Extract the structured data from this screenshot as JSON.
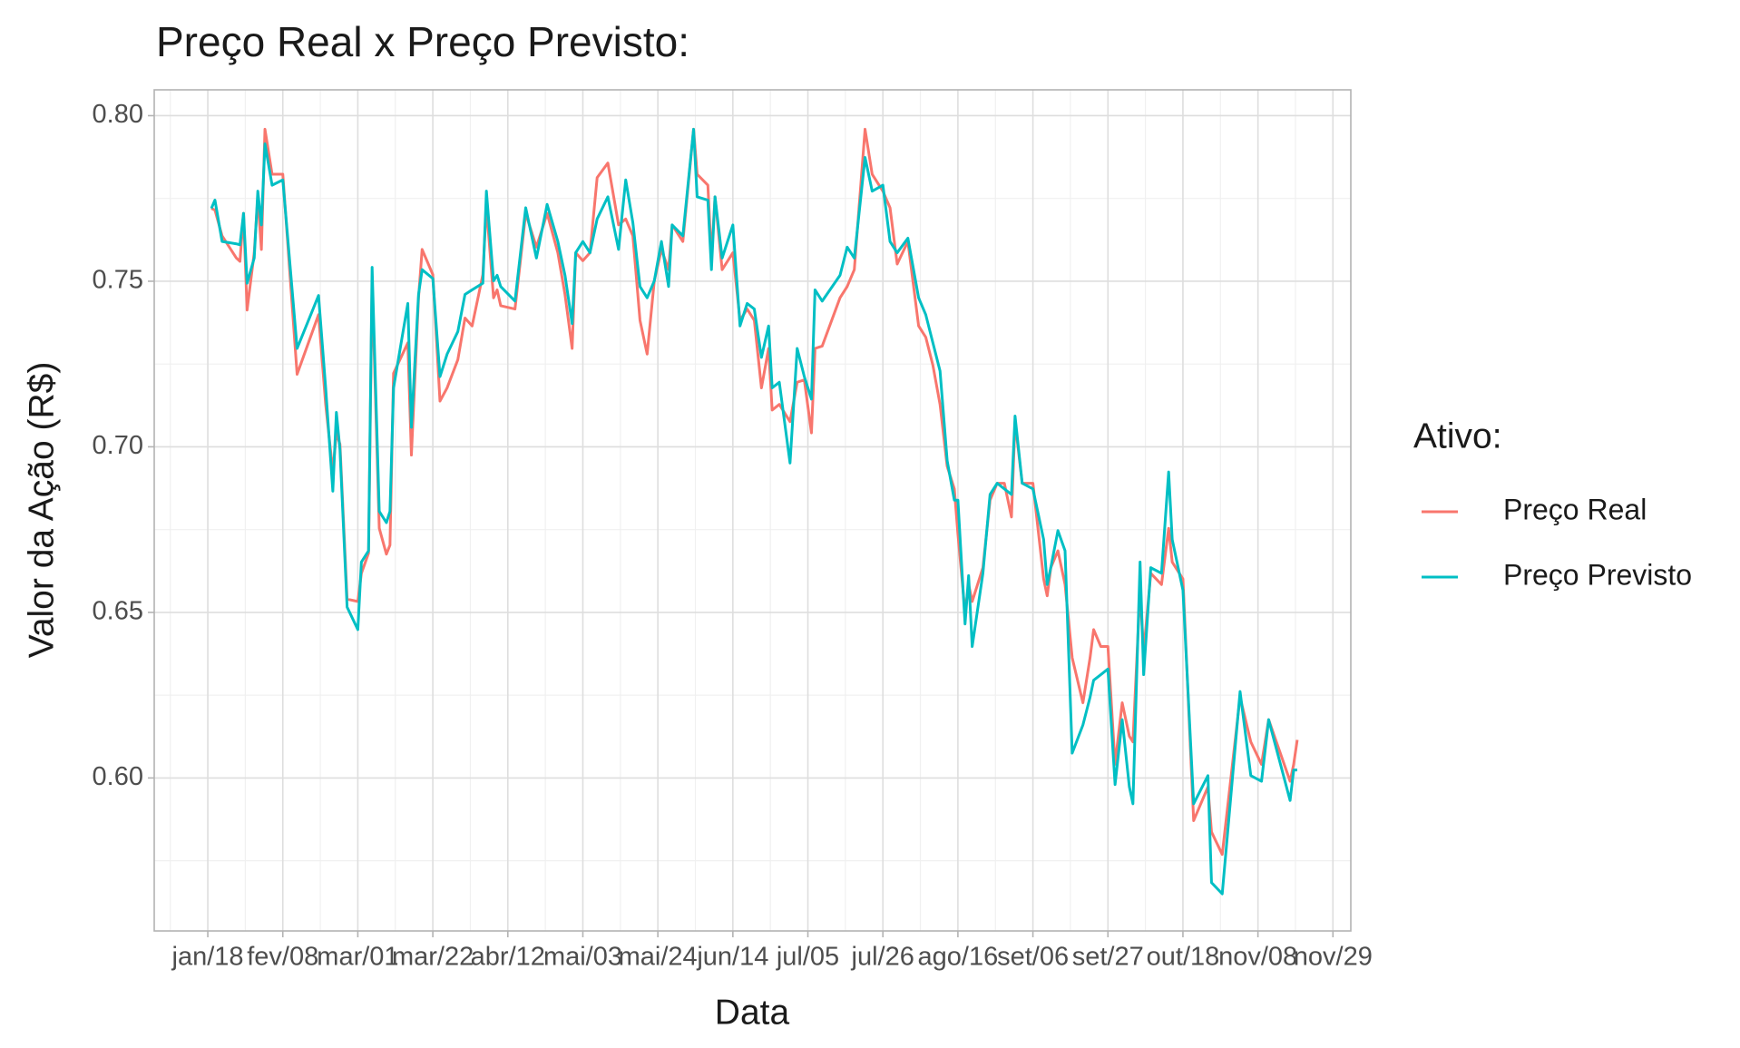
{
  "chart_data": {
    "type": "line",
    "title": "Preço Real x Preço Previsto:",
    "x_label": "Data",
    "y_label": "Valor da Ação (R$)",
    "legend_title": "Ativo:",
    "legend_position": "right",
    "grid": true,
    "minor_grid": true,
    "x": [
      "01-19",
      "01-20",
      "01-22",
      "01-26",
      "01-27",
      "01-28",
      "01-29",
      "01-31",
      "02-01",
      "02-02",
      "02-03",
      "02-05",
      "02-08",
      "02-12",
      "02-18",
      "02-20",
      "02-22",
      "02-23",
      "02-24",
      "02-26",
      "03-01",
      "03-02",
      "03-04",
      "03-05",
      "03-07",
      "03-09",
      "03-10",
      "03-11",
      "03-15",
      "03-16",
      "03-18",
      "03-19",
      "03-22",
      "03-24",
      "03-26",
      "03-29",
      "03-31",
      "04-02",
      "04-05",
      "04-06",
      "04-08",
      "04-09",
      "04-10",
      "04-14",
      "04-17",
      "04-20",
      "04-23",
      "04-26",
      "04-28",
      "04-30",
      "05-01",
      "05-03",
      "05-05",
      "05-07",
      "05-10",
      "05-13",
      "05-15",
      "05-17",
      "05-19",
      "05-21",
      "05-23",
      "05-25",
      "05-27",
      "05-28",
      "05-31",
      "06-03",
      "06-04",
      "06-07",
      "06-08",
      "06-09",
      "06-11",
      "06-14",
      "06-16",
      "06-18",
      "06-20",
      "06-22",
      "06-24",
      "06-25",
      "06-27",
      "06-30",
      "07-02",
      "07-04",
      "07-06",
      "07-07",
      "07-09",
      "07-14",
      "07-16",
      "07-18",
      "07-21",
      "07-23",
      "07-26",
      "07-28",
      "07-30",
      "08-02",
      "08-05",
      "08-07",
      "08-09",
      "08-11",
      "08-13",
      "08-15",
      "08-16",
      "08-18",
      "08-19",
      "08-20",
      "08-23",
      "08-25",
      "08-27",
      "08-29",
      "08-31",
      "09-01",
      "09-03",
      "09-06",
      "09-09",
      "09-10",
      "09-11",
      "09-13",
      "09-15",
      "09-17",
      "09-20",
      "09-22",
      "09-23",
      "09-25",
      "09-27",
      "09-29",
      "10-01",
      "10-03",
      "10-04",
      "10-06",
      "10-07",
      "10-09",
      "10-12",
      "10-14",
      "10-15",
      "10-18",
      "10-21",
      "10-25",
      "10-26",
      "10-29",
      "11-03",
      "11-06",
      "11-09",
      "11-11",
      "11-17",
      "11-18",
      "11-19"
    ],
    "series": [
      {
        "name": "Preço Real",
        "color": "#F8766D",
        "values": [
          0.772,
          0.7715,
          0.7637,
          0.757,
          0.756,
          0.7705,
          0.7413,
          0.7586,
          0.7755,
          0.7596,
          0.7959,
          0.7823,
          0.7823,
          0.7219,
          0.7399,
          0.7128,
          0.6924,
          0.7042,
          0.7008,
          0.654,
          0.6533,
          0.6618,
          0.6679,
          0.7501,
          0.6754,
          0.6676,
          0.6703,
          0.7222,
          0.7314,
          0.6975,
          0.745,
          0.7596,
          0.752,
          0.7138,
          0.7178,
          0.7263,
          0.7389,
          0.7365,
          0.752,
          0.7728,
          0.745,
          0.7474,
          0.7426,
          0.7416,
          0.7705,
          0.7603,
          0.7705,
          0.7586,
          0.746,
          0.7297,
          0.7586,
          0.7562,
          0.7586,
          0.7813,
          0.7857,
          0.767,
          0.7688,
          0.7637,
          0.7382,
          0.728,
          0.7501,
          0.7596,
          0.7535,
          0.767,
          0.762,
          0.7959,
          0.7823,
          0.779,
          0.757,
          0.7755,
          0.7535,
          0.7586,
          0.7382,
          0.7416,
          0.7382,
          0.7178,
          0.7297,
          0.7111,
          0.7128,
          0.7076,
          0.7195,
          0.7202,
          0.7042,
          0.7297,
          0.7304,
          0.745,
          0.7484,
          0.7535,
          0.7959,
          0.7823,
          0.7772,
          0.7722,
          0.7552,
          0.762,
          0.7365,
          0.7331,
          0.7246,
          0.7128,
          0.6941,
          0.6873,
          0.6737,
          0.6499,
          0.6584,
          0.6533,
          0.6635,
          0.6839,
          0.689,
          0.689,
          0.6788,
          0.7076,
          0.689,
          0.689,
          0.6601,
          0.655,
          0.6635,
          0.6686,
          0.6584,
          0.6363,
          0.6227,
          0.6363,
          0.6448,
          0.6397,
          0.6397,
          0.6041,
          0.6227,
          0.6126,
          0.6109,
          0.6567,
          0.638,
          0.6618,
          0.6584,
          0.6754,
          0.6652,
          0.6601,
          0.5871,
          0.5973,
          0.5837,
          0.5769,
          0.6244,
          0.6109,
          0.6041,
          0.6176,
          0.599,
          0.6041,
          0.6115
        ]
      },
      {
        "name": "Preço Previsto",
        "color": "#00BFC4",
        "values": [
          0.772,
          0.7745,
          0.762,
          0.7613,
          0.761,
          0.7705,
          0.7494,
          0.757,
          0.7772,
          0.767,
          0.7915,
          0.779,
          0.7806,
          0.7297,
          0.7457,
          0.7178,
          0.6866,
          0.7104,
          0.6992,
          0.6516,
          0.6448,
          0.6652,
          0.6686,
          0.7542,
          0.6805,
          0.6771,
          0.6805,
          0.7178,
          0.7433,
          0.7059,
          0.746,
          0.7535,
          0.7508,
          0.7212,
          0.728,
          0.7348,
          0.746,
          0.7474,
          0.7494,
          0.7772,
          0.7501,
          0.7518,
          0.7484,
          0.744,
          0.7722,
          0.757,
          0.7732,
          0.762,
          0.7518,
          0.7372,
          0.7586,
          0.762,
          0.7586,
          0.7688,
          0.7755,
          0.7596,
          0.7806,
          0.7677,
          0.7484,
          0.745,
          0.7501,
          0.762,
          0.7484,
          0.767,
          0.7637,
          0.7959,
          0.7755,
          0.7745,
          0.7535,
          0.7755,
          0.757,
          0.767,
          0.7365,
          0.7433,
          0.7416,
          0.727,
          0.7365,
          0.7178,
          0.7195,
          0.6951,
          0.7297,
          0.7212,
          0.7144,
          0.7474,
          0.744,
          0.7518,
          0.7603,
          0.757,
          0.7874,
          0.7772,
          0.779,
          0.762,
          0.7586,
          0.763,
          0.745,
          0.7399,
          0.7314,
          0.7229,
          0.6958,
          0.6839,
          0.6839,
          0.6465,
          0.6611,
          0.6397,
          0.6618,
          0.6856,
          0.689,
          0.6873,
          0.6856,
          0.7093,
          0.689,
          0.6873,
          0.672,
          0.6584,
          0.6635,
          0.6747,
          0.6686,
          0.6075,
          0.616,
          0.6244,
          0.6295,
          0.6312,
          0.6329,
          0.598,
          0.6176,
          0.5973,
          0.5922,
          0.6652,
          0.6312,
          0.6635,
          0.6618,
          0.6924,
          0.672,
          0.6567,
          0.5922,
          0.6007,
          0.5684,
          0.565,
          0.6261,
          0.6007,
          0.599,
          0.6176,
          0.5932,
          0.6024,
          0.6024
        ]
      }
    ],
    "xlim": [
      "01-03",
      "12-04"
    ],
    "xticks": [
      {
        "value": "01-18",
        "label": "jan/18"
      },
      {
        "value": "02-08",
        "label": "fev/08"
      },
      {
        "value": "03-01",
        "label": "mar/01"
      },
      {
        "value": "03-22",
        "label": "mar/22"
      },
      {
        "value": "04-12",
        "label": "abr/12"
      },
      {
        "value": "05-03",
        "label": "mai/03"
      },
      {
        "value": "05-24",
        "label": "mai/24"
      },
      {
        "value": "06-14",
        "label": "jun/14"
      },
      {
        "value": "07-05",
        "label": "jul/05"
      },
      {
        "value": "07-26",
        "label": "jul/26"
      },
      {
        "value": "08-16",
        "label": "ago/16"
      },
      {
        "value": "09-06",
        "label": "set/06"
      },
      {
        "value": "09-27",
        "label": "set/27"
      },
      {
        "value": "10-18",
        "label": "out/18"
      },
      {
        "value": "11-08",
        "label": "nov/08"
      },
      {
        "value": "11-29",
        "label": "nov/29"
      }
    ],
    "ylim": [
      0.5538,
      0.8078
    ],
    "yticks": [
      {
        "value": 0.6,
        "label": "0.60"
      },
      0.65,
      {
        "value": 0.7,
        "label": "0.70"
      },
      0.75,
      {
        "value": 0.8,
        "label": "0.80"
      }
    ]
  }
}
